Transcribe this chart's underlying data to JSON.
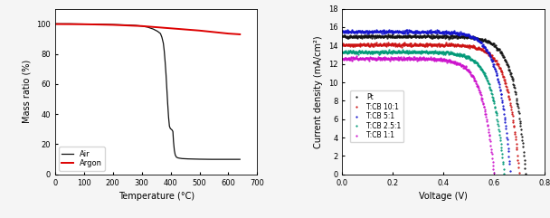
{
  "tga": {
    "xlabel": "Temperature (°C)",
    "ylabel": "Mass ratio (%)",
    "xlim": [
      0,
      700
    ],
    "ylim": [
      0,
      110
    ],
    "xticks": [
      0,
      100,
      200,
      300,
      400,
      500,
      600,
      700
    ],
    "yticks": [
      0,
      20,
      40,
      60,
      80,
      100
    ],
    "air_color": "#111111",
    "argon_color": "#dd0000",
    "legend_labels": [
      "Air",
      "Argon"
    ],
    "air_T": [
      0,
      20,
      50,
      100,
      150,
      200,
      250,
      280,
      300,
      320,
      340,
      355,
      365,
      370,
      375,
      378,
      381,
      384,
      387,
      390,
      393,
      396,
      399,
      402,
      405,
      408,
      410,
      413,
      416,
      420,
      425,
      430,
      440,
      460,
      480,
      500,
      540,
      580,
      620,
      640
    ],
    "air_M": [
      100,
      100,
      100,
      99.8,
      99.7,
      99.5,
      99.2,
      98.9,
      98.5,
      97.8,
      96.5,
      95.0,
      93.5,
      91.0,
      87.0,
      82.0,
      75.0,
      67.0,
      57.0,
      47.0,
      38.0,
      32.0,
      30.5,
      30.0,
      29.5,
      28.5,
      22.0,
      16.0,
      13.0,
      11.5,
      11.0,
      10.8,
      10.5,
      10.3,
      10.2,
      10.1,
      10.0,
      10.0,
      10.0,
      10.0
    ],
    "argon_T": [
      0,
      100,
      200,
      300,
      400,
      500,
      600,
      640
    ],
    "argon_M": [
      99.8,
      99.7,
      99.3,
      98.5,
      97.0,
      95.5,
      93.5,
      93.0
    ]
  },
  "jv": {
    "xlabel": "Voltage (V)",
    "ylabel": "Current density (mA/cm²)",
    "xlim": [
      0.0,
      0.8
    ],
    "ylim": [
      0,
      18
    ],
    "xticks": [
      0.0,
      0.2,
      0.4,
      0.6,
      0.8
    ],
    "yticks": [
      0,
      2,
      4,
      6,
      8,
      10,
      12,
      14,
      16,
      18
    ],
    "series": [
      {
        "label": "Pt",
        "color": "#111111",
        "marker": "s",
        "jsc": 15.0,
        "voc": 0.725,
        "n": 22
      },
      {
        "label": "T:CB 10:1",
        "color": "#cc1111",
        "marker": "s",
        "jsc": 14.1,
        "voc": 0.7,
        "n": 22
      },
      {
        "label": "T:CB 5:1",
        "color": "#1111cc",
        "marker": "^",
        "jsc": 15.5,
        "voc": 0.665,
        "n": 22
      },
      {
        "label": "T:CB 2.5:1",
        "color": "#009977",
        "marker": "o",
        "jsc": 13.3,
        "voc": 0.64,
        "n": 22
      },
      {
        "label": "T:CB 1:1",
        "color": "#cc11cc",
        "marker": "o",
        "jsc": 12.6,
        "voc": 0.6,
        "n": 22
      }
    ]
  },
  "fig_bg": "#f5f5f5",
  "ax_bg": "#ffffff"
}
